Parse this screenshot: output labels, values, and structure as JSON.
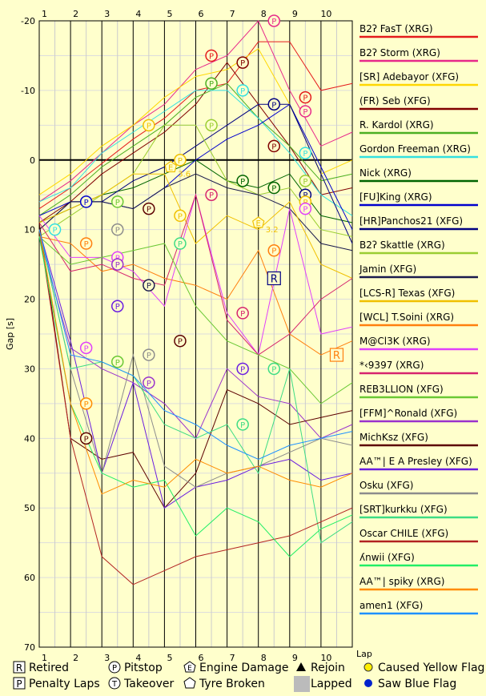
{
  "chart_data": {
    "type": "line",
    "ylabel": "Gap [s]",
    "xlabel": "Lap",
    "laps": [
      1,
      2,
      3,
      4,
      5,
      6,
      7,
      8,
      9,
      10
    ],
    "y_axis_ticks": [
      -20,
      -10,
      0,
      10,
      20,
      30,
      40,
      50,
      60,
      70
    ],
    "ylim": [
      -20,
      70
    ],
    "reference_line": 0,
    "grid": true,
    "legend_position": "right",
    "series": [
      {
        "name": "B2ʔ FasT (XRG)",
        "color": "#e41a1c",
        "values": [
          7,
          4,
          0.5,
          -3,
          -6,
          -10,
          -11,
          -17,
          -17,
          -10,
          -11
        ]
      },
      {
        "name": "B2ʔ Storm (XRG)",
        "color": "#e7298a",
        "values": [
          6,
          3,
          -1,
          -5,
          -8,
          -13,
          -15,
          -20,
          -10,
          -2,
          -4
        ]
      },
      {
        "name": "[SR] Adebayor (XFG)",
        "color": "#ffd700",
        "values": [
          5,
          2,
          -2,
          -5,
          -9,
          -12,
          -13,
          -16,
          -8,
          2,
          0
        ]
      },
      {
        "name": "(FR) Seb (XFG)",
        "color": "#800000",
        "values": [
          9,
          6,
          2,
          -1,
          -4,
          -8,
          -14,
          -8,
          -2,
          5,
          4
        ]
      },
      {
        "name": "R. Kardol (XRG)",
        "color": "#4caf22",
        "values": [
          8,
          5,
          1,
          -2,
          -5,
          -9,
          -11,
          -6,
          -2,
          3,
          2
        ]
      },
      {
        "name": "Gordon Freeman (XRG)",
        "color": "#33e0e0",
        "values": [
          6,
          4,
          -1,
          -4,
          -7,
          -10,
          -10,
          -6,
          -1,
          5,
          8
        ]
      },
      {
        "name": "Nick (XRG)",
        "color": "#006400",
        "values": [
          9,
          7,
          5,
          4,
          2,
          0,
          3,
          4,
          2,
          8,
          9
        ]
      },
      {
        "name": "[FU]King (XRG)",
        "color": "#0000cd",
        "values": [
          8,
          6,
          6,
          7,
          4,
          0,
          -3,
          -5,
          -8,
          1,
          10
        ]
      },
      {
        "name": "[HR]Panchos21 (XFG)",
        "color": "#000080",
        "values": [
          10,
          6,
          6,
          3,
          1,
          -2,
          -5,
          -8,
          -8,
          2,
          12
        ]
      },
      {
        "name": "B2ʔ Skattle (XRG)",
        "color": "#9acd32",
        "values": [
          11,
          8,
          5,
          2,
          -5,
          -5,
          3,
          5,
          4,
          10,
          11
        ]
      },
      {
        "name": "Jamin (XFG)",
        "color": "#1a1a4d",
        "values": [
          10,
          6,
          6,
          7,
          4,
          2,
          4,
          5,
          7,
          12,
          13
        ]
      },
      {
        "name": "[LCS-R] Texas (XFG)",
        "color": "#f0c000",
        "values": [
          9,
          7,
          5,
          2,
          2,
          12,
          8,
          10,
          6,
          15,
          17
        ]
      },
      {
        "name": "[WCL] T.Soini (XRG)",
        "color": "#ff7f0e",
        "values": [
          11,
          12,
          16,
          15,
          17,
          18,
          20,
          13,
          25,
          28,
          26
        ]
      },
      {
        "name": "M@Cl3K (XRG)",
        "color": "#e040fb",
        "values": [
          8,
          14,
          14,
          16,
          21,
          5,
          22,
          28,
          7,
          25,
          24
        ]
      },
      {
        "name": "*‹9397 (XRG)",
        "color": "#d6246e",
        "values": [
          9,
          16,
          15,
          17,
          18,
          5,
          23,
          28,
          25,
          20,
          17
        ]
      },
      {
        "name": "REB3LLION (XFG)",
        "color": "#6ac834",
        "values": [
          11,
          15,
          14,
          13,
          12,
          21,
          26,
          28,
          30,
          35,
          32
        ]
      },
      {
        "name": "[FFM]^Ronald (XFG)",
        "color": "#9932cc",
        "values": [
          11,
          27,
          30,
          32,
          35,
          40,
          30,
          34,
          35,
          40,
          38
        ]
      },
      {
        "name": "MichKsz (XFG)",
        "color": "#5c0000",
        "values": [
          9,
          40,
          43,
          42,
          50,
          45,
          33,
          35,
          38,
          37,
          36
        ]
      },
      {
        "name": "AA™| E A Presley (XFG)",
        "color": "#6a1de0",
        "values": [
          10,
          26,
          45,
          32,
          50,
          47,
          46,
          44,
          43,
          46,
          45
        ]
      },
      {
        "name": "Osku (XFG)",
        "color": "#8c8c8c",
        "values": [
          10,
          30,
          45,
          28,
          44,
          47,
          45,
          44,
          42,
          40,
          41
        ]
      },
      {
        "name": "[SRT]kurkku (XFG)",
        "color": "#3ddc84",
        "values": [
          10,
          30,
          29,
          31,
          38,
          40,
          38,
          45,
          30,
          55,
          52
        ]
      },
      {
        "name": "Oscar CHILE (XFG)",
        "color": "#b22222",
        "values": [
          10,
          40,
          57,
          61,
          59,
          57,
          56,
          55,
          54,
          52,
          50
        ]
      },
      {
        "name": "ʎnwii (XFG)",
        "color": "#22ee66",
        "values": [
          11,
          35,
          45,
          47,
          46,
          54,
          50,
          52,
          57,
          53,
          51
        ]
      },
      {
        "name": "AA™| spiky (XRG)",
        "color": "#ff8c00",
        "values": [
          10,
          35,
          48,
          46,
          47,
          43,
          45,
          44,
          46,
          47,
          45
        ]
      },
      {
        "name": "amen1 (XFG)",
        "color": "#1e90ff",
        "values": [
          10,
          28,
          29,
          31,
          36,
          38,
          41,
          43,
          41,
          40,
          39
        ]
      }
    ],
    "pit_markers": [
      {
        "series": 0,
        "lap": 5.5,
        "y": -15
      },
      {
        "series": 0,
        "lap": 8.5,
        "y": -9
      },
      {
        "series": 1,
        "lap": 7.5,
        "y": -20
      },
      {
        "series": 1,
        "lap": 8.5,
        "y": -7
      },
      {
        "series": 3,
        "lap": 6.5,
        "y": -14
      },
      {
        "series": 3,
        "lap": 7.5,
        "y": -2
      },
      {
        "series": 4,
        "lap": 5.5,
        "y": -11
      },
      {
        "series": 5,
        "lap": 6.5,
        "y": -10
      },
      {
        "series": 5,
        "lap": 8.5,
        "y": -1
      },
      {
        "series": 6,
        "lap": 6.5,
        "y": 3
      },
      {
        "series": 6,
        "lap": 7.5,
        "y": 4
      },
      {
        "series": 7,
        "lap": 1.5,
        "y": 6
      },
      {
        "series": 8,
        "lap": 7.5,
        "y": -8
      },
      {
        "series": 8,
        "lap": 8.5,
        "y": 5
      },
      {
        "series": 9,
        "lap": 5.5,
        "y": -5
      },
      {
        "series": 9,
        "lap": 8.5,
        "y": 3
      },
      {
        "series": 10,
        "lap": 3.5,
        "y": 18
      },
      {
        "series": 11,
        "lap": 4.5,
        "y": 0
      },
      {
        "series": 11,
        "lap": 3.5,
        "y": -5
      },
      {
        "series": 11,
        "lap": 4.5,
        "y": 8
      },
      {
        "series": 11,
        "lap": 8.5,
        "y": 6
      },
      {
        "series": 12,
        "lap": 1.5,
        "y": 12
      },
      {
        "series": 12,
        "lap": 7.5,
        "y": 13
      },
      {
        "series": 13,
        "lap": 2.5,
        "y": 14
      },
      {
        "series": 13,
        "lap": 1.5,
        "y": 27
      },
      {
        "series": 13,
        "lap": 8.5,
        "y": 7
      },
      {
        "series": 14,
        "lap": 5.5,
        "y": 5
      },
      {
        "series": 14,
        "lap": 6.5,
        "y": 22
      },
      {
        "series": 15,
        "lap": 2.5,
        "y": 6
      },
      {
        "series": 15,
        "lap": 2.5,
        "y": 29
      },
      {
        "series": 16,
        "lap": 2.5,
        "y": 15
      },
      {
        "series": 16,
        "lap": 3.5,
        "y": 32
      },
      {
        "series": 17,
        "lap": 3.5,
        "y": 7
      },
      {
        "series": 17,
        "lap": 1.5,
        "y": 40
      },
      {
        "series": 17,
        "lap": 4.5,
        "y": 26
      },
      {
        "series": 18,
        "lap": 2.5,
        "y": 21
      },
      {
        "series": 18,
        "lap": 6.5,
        "y": 30
      },
      {
        "series": 19,
        "lap": 2.5,
        "y": 10
      },
      {
        "series": 19,
        "lap": 3.5,
        "y": 28
      },
      {
        "series": 20,
        "lap": 4.5,
        "y": 12
      },
      {
        "series": 20,
        "lap": 6.5,
        "y": 38
      },
      {
        "series": 20,
        "lap": 7.5,
        "y": 30
      },
      {
        "series": 23,
        "lap": 1.5,
        "y": 35
      },
      {
        "series": 5,
        "lap": 0.5,
        "y": 10
      }
    ],
    "engine_damage_markers": [
      {
        "series": 11,
        "lap": 4.2,
        "y": 1,
        "label": "3.6"
      },
      {
        "series": 11,
        "lap": 7.0,
        "y": 9,
        "label": "3.2"
      }
    ],
    "retired_markers": [
      {
        "series": 12,
        "lap": 9.5,
        "y": 28
      },
      {
        "series": 8,
        "lap": 7.5,
        "y": 17
      }
    ],
    "key": [
      {
        "symbol": "R",
        "label": "Retired"
      },
      {
        "symbol": "P",
        "label": "Pitstop"
      },
      {
        "symbol": "E",
        "label": "Engine Damage"
      },
      {
        "symbol": "triangle",
        "label": "Rejoin"
      },
      {
        "symbol": "yellow-dot",
        "label": "Caused Yellow Flag"
      },
      {
        "symbol": "P-square",
        "label": "Penalty Laps"
      },
      {
        "symbol": "T",
        "label": "Takeover"
      },
      {
        "symbol": "pentagon",
        "label": "Tyre Broken"
      },
      {
        "symbol": "grey-square",
        "label": "Lapped"
      },
      {
        "symbol": "blue-dot",
        "label": "Saw Blue Flag"
      }
    ]
  }
}
